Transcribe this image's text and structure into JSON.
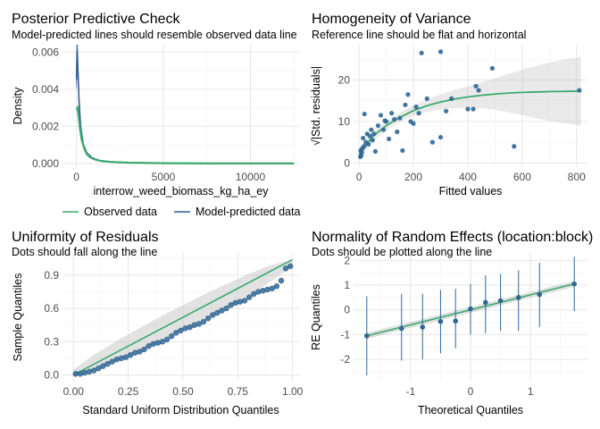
{
  "colors": {
    "green": "#3aaa6f",
    "blue": "#2c5f95",
    "dot": "#2e6796",
    "band": "#bfbfbf"
  },
  "chart_data": [
    {
      "id": "ppc",
      "type": "line",
      "title": "Posterior Predictive Check",
      "subtitle": "Model-predicted lines should resemble observed data line",
      "xlabel": "interrow_weed_biomass_kg_ha_ey",
      "ylabel": "Density",
      "xlim": [
        -800,
        12800
      ],
      "ylim": [
        -0.0002,
        0.0064
      ],
      "xticks": [
        0,
        5000,
        10000
      ],
      "xtick_labels": [
        "0",
        "5000",
        "10000"
      ],
      "yticks": [
        0,
        0.002,
        0.004,
        0.006
      ],
      "ytick_labels": [
        "0.000",
        "0.002",
        "0.004",
        "0.006"
      ],
      "legend": {
        "position": "bottom",
        "entries": [
          "Observed data",
          "Model-predicted data"
        ]
      },
      "series": [
        {
          "name": "Observed data",
          "role": "observed",
          "x": [
            0,
            60,
            120,
            200,
            300,
            450,
            600,
            800,
            1100,
            1500,
            2000,
            3000,
            5000,
            8000,
            12500
          ],
          "y": [
            0.0029,
            0.003,
            0.0026,
            0.0019,
            0.0013,
            0.0008,
            0.0005,
            0.00032,
            0.0002,
            0.00012,
            8e-05,
            4e-05,
            1e-05,
            0.0,
            0.0
          ]
        },
        {
          "name": "Model-predicted data",
          "role": "predicted",
          "x": [
            0,
            40,
            90,
            150,
            250,
            400,
            600,
            900,
            1300,
            2000,
            3000,
            5000,
            8000,
            12500
          ],
          "y": [
            0.0045,
            0.0061,
            0.005,
            0.0034,
            0.0019,
            0.001,
            0.00055,
            0.0003,
            0.00016,
            9e-05,
            4e-05,
            1e-05,
            0.0,
            0.0
          ]
        }
      ]
    },
    {
      "id": "hov",
      "type": "scatter",
      "title": "Homogeneity of Variance",
      "subtitle": "Reference line should be flat and horizontal",
      "xlabel": "Fitted values",
      "ylabel": "√|Std. residuals|",
      "xlim": [
        -20,
        840
      ],
      "ylim": [
        -1,
        28.5
      ],
      "xticks": [
        0,
        200,
        400,
        600,
        800
      ],
      "xtick_labels": [
        "0",
        "200",
        "400",
        "600",
        "800"
      ],
      "yticks": [
        0,
        10,
        20
      ],
      "ytick_labels": [
        "0",
        "10",
        "20"
      ],
      "points": {
        "x": [
          5,
          6,
          8,
          10,
          12,
          15,
          18,
          20,
          25,
          30,
          35,
          40,
          45,
          50,
          55,
          60,
          70,
          80,
          90,
          95,
          100,
          110,
          120,
          130,
          140,
          150,
          160,
          170,
          180,
          190,
          200,
          210,
          220,
          230,
          250,
          270,
          300,
          320,
          340,
          400,
          420,
          430,
          440,
          490,
          570,
          810,
          300
        ],
        "y": [
          1.5,
          3.0,
          1.8,
          2.5,
          3.5,
          6.0,
          4.0,
          11.8,
          5.0,
          7.0,
          4.5,
          6.5,
          8.0,
          5.5,
          7.0,
          2.8,
          9.0,
          11.5,
          8.0,
          10.2,
          10.0,
          5.8,
          12.0,
          10.5,
          7.5,
          10.8,
          3.0,
          14.0,
          16.5,
          10.0,
          9.5,
          13.5,
          12.0,
          26.5,
          15.5,
          5.0,
          6.2,
          12.5,
          15.5,
          13.0,
          13.0,
          18.5,
          17.5,
          22.8,
          4.0,
          17.5,
          26.8
        ]
      },
      "fit": {
        "x": [
          0,
          50,
          100,
          150,
          200,
          250,
          300,
          350,
          400,
          450,
          500,
          550,
          600,
          650,
          700,
          750,
          800,
          816
        ],
        "y": [
          2.0,
          6.4,
          9.0,
          11.0,
          12.6,
          13.8,
          14.7,
          15.4,
          15.9,
          16.3,
          16.6,
          16.85,
          17.0,
          17.1,
          17.2,
          17.25,
          17.3,
          17.3
        ],
        "lower": [
          0.8,
          5.2,
          7.9,
          9.9,
          11.3,
          12.3,
          12.9,
          13.2,
          13.3,
          13.2,
          12.8,
          12.2,
          11.5,
          10.8,
          10.2,
          9.6,
          9.2,
          9.0
        ],
        "upper": [
          3.2,
          7.6,
          10.1,
          12.1,
          13.9,
          15.3,
          16.5,
          17.6,
          18.5,
          19.4,
          20.4,
          21.5,
          22.5,
          23.4,
          24.2,
          24.9,
          25.4,
          25.6
        ]
      }
    },
    {
      "id": "unif",
      "type": "scatter",
      "title": "Uniformity of Residuals",
      "subtitle": "Dots should fall along the line",
      "xlabel": "Standard Uniform Distribution Quantiles",
      "ylabel": "Sample Quantiles",
      "xlim": [
        -0.05,
        1.03
      ],
      "ylim": [
        -0.06,
        1.1
      ],
      "xticks": [
        0,
        0.25,
        0.5,
        0.75,
        1
      ],
      "xtick_labels": [
        "0.00",
        "0.25",
        "0.50",
        "0.75",
        "1.00"
      ],
      "yticks": [
        0,
        0.3,
        0.6,
        0.9
      ],
      "ytick_labels": [
        "0.0",
        "0.3",
        "0.6",
        "0.9"
      ],
      "points": {
        "n": 48,
        "x_start": 0.01,
        "x_end": 0.99,
        "y": [
          0.01,
          0.01,
          0.02,
          0.03,
          0.04,
          0.06,
          0.08,
          0.1,
          0.12,
          0.14,
          0.15,
          0.16,
          0.18,
          0.2,
          0.21,
          0.23,
          0.26,
          0.28,
          0.29,
          0.3,
          0.32,
          0.35,
          0.38,
          0.4,
          0.42,
          0.43,
          0.45,
          0.46,
          0.48,
          0.51,
          0.54,
          0.56,
          0.58,
          0.6,
          0.63,
          0.65,
          0.66,
          0.67,
          0.7,
          0.73,
          0.75,
          0.76,
          0.77,
          0.78,
          0.8,
          0.85,
          0.96,
          0.98
        ]
      },
      "ref_line": {
        "x": [
          0,
          1
        ],
        "y": [
          0,
          1.04
        ]
      },
      "band": {
        "x": [
          0,
          0.1,
          0.2,
          0.3,
          0.4,
          0.5,
          0.6,
          0.7,
          0.8,
          0.9,
          1.0
        ],
        "lower": [
          0.0,
          0.05,
          0.13,
          0.22,
          0.31,
          0.41,
          0.51,
          0.61,
          0.72,
          0.84,
          0.98
        ],
        "upper": [
          0.05,
          0.19,
          0.31,
          0.42,
          0.53,
          0.63,
          0.73,
          0.82,
          0.91,
          0.99,
          1.04
        ]
      }
    },
    {
      "id": "nre",
      "type": "scatter",
      "title": "Normality of Random Effects (location:block)",
      "subtitle": "Dots should be plotted along the line",
      "xlabel": "Theoretical Quantiles",
      "ylabel": "RE Quantiles",
      "xlim": [
        -1.95,
        1.95
      ],
      "ylim": [
        -2.9,
        2.3
      ],
      "xticks": [
        -1,
        0,
        1
      ],
      "xtick_labels": [
        "-1",
        "0",
        "1"
      ],
      "yticks": [
        -2,
        -1,
        0,
        1,
        2
      ],
      "ytick_labels": [
        "-2",
        "-1",
        "0",
        "1",
        "2"
      ],
      "points": {
        "x": [
          -1.73,
          -1.15,
          -0.8,
          -0.5,
          -0.25,
          0.0,
          0.25,
          0.5,
          0.8,
          1.15,
          1.73
        ],
        "y": [
          -1.05,
          -0.75,
          -0.7,
          -0.47,
          -0.45,
          0.04,
          0.3,
          0.37,
          0.5,
          0.62,
          1.05
        ],
        "lo": [
          -2.65,
          -2.05,
          -2.0,
          -1.75,
          -1.55,
          -1.0,
          -0.95,
          -0.85,
          -0.85,
          -0.7,
          -0.05
        ],
        "hi": [
          0.55,
          0.65,
          0.65,
          0.8,
          0.85,
          1.05,
          1.4,
          1.45,
          1.6,
          1.9,
          2.15
        ]
      },
      "ref_line": {
        "x": [
          -1.73,
          1.73
        ],
        "y": [
          -1.05,
          1.05
        ]
      }
    }
  ]
}
